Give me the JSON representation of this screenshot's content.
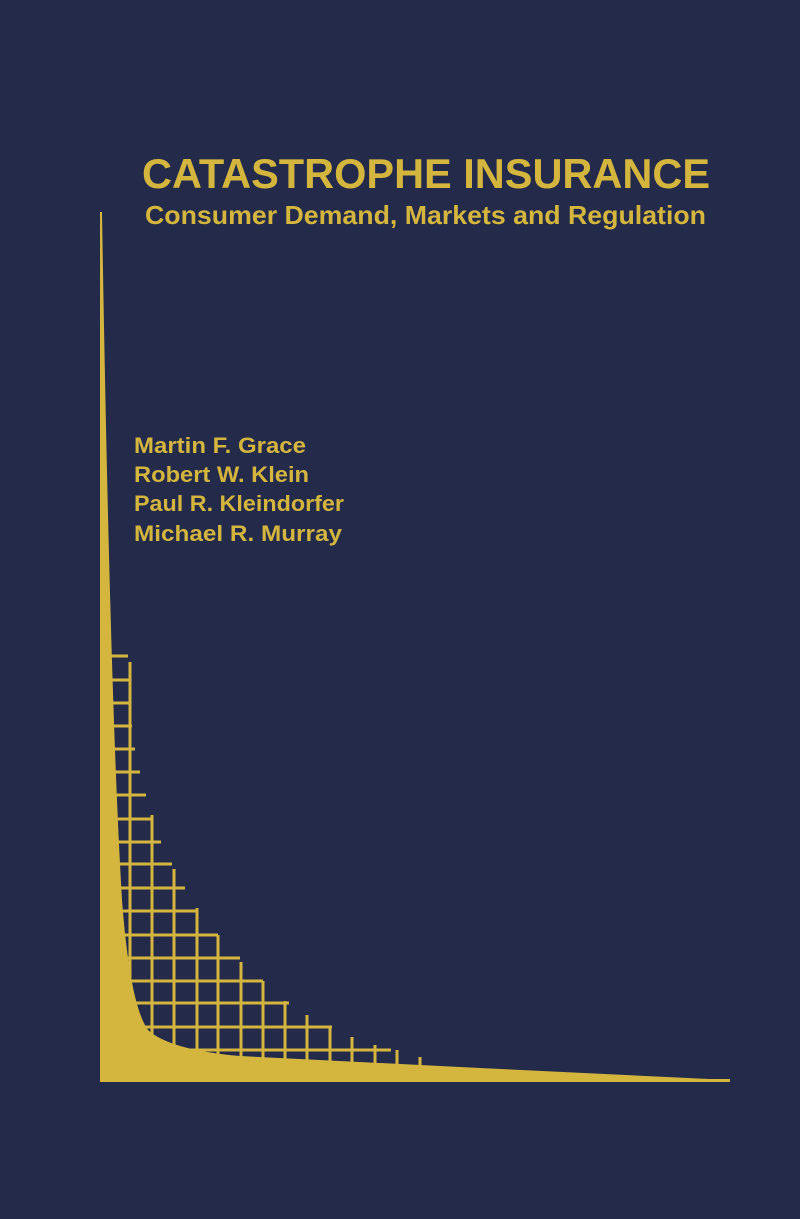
{
  "cover": {
    "title": "CATASTROPHE INSURANCE",
    "subtitle": "Consumer Demand, Markets and Regulation",
    "authors": [
      "Martin F. Grace",
      "Robert W. Klein",
      "Paul R. Kleindorfer",
      "Michael R. Murray"
    ],
    "background_color": "#232a4a",
    "accent_color": "#d4b63e"
  }
}
